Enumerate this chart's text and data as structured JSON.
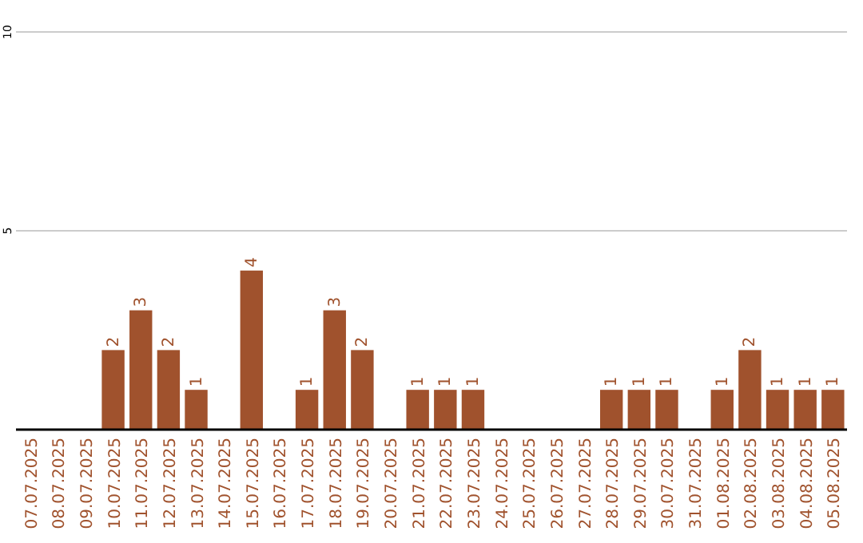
{
  "chart_data": {
    "type": "bar",
    "categories": [
      "07.07.2025",
      "08.07.2025",
      "09.07.2025",
      "10.07.2025",
      "11.07.2025",
      "12.07.2025",
      "13.07.2025",
      "14.07.2025",
      "15.07.2025",
      "16.07.2025",
      "17.07.2025",
      "18.07.2025",
      "19.07.2025",
      "20.07.2025",
      "21.07.2025",
      "22.07.2025",
      "23.07.2025",
      "24.07.2025",
      "25.07.2025",
      "26.07.2025",
      "27.07.2025",
      "28.07.2025",
      "29.07.2025",
      "30.07.2025",
      "31.07.2025",
      "01.08.2025",
      "02.08.2025",
      "03.08.2025",
      "04.08.2025",
      "05.08.2025"
    ],
    "values": [
      0,
      0,
      0,
      2,
      3,
      2,
      1,
      0,
      4,
      0,
      1,
      3,
      2,
      0,
      1,
      1,
      1,
      0,
      0,
      0,
      0,
      1,
      1,
      1,
      0,
      1,
      2,
      1,
      1,
      1
    ],
    "value_labels": [
      null,
      null,
      null,
      "2",
      "3",
      "2",
      "1",
      null,
      "4",
      null,
      "1",
      "3",
      "2",
      null,
      "1",
      "1",
      "1",
      null,
      null,
      null,
      null,
      "1",
      "1",
      "1",
      null,
      "1",
      "2",
      "1",
      "1",
      "1"
    ],
    "color": "#a0522d",
    "ylim": [
      0,
      10
    ],
    "yticks": [
      5,
      10
    ],
    "grid": "y"
  }
}
